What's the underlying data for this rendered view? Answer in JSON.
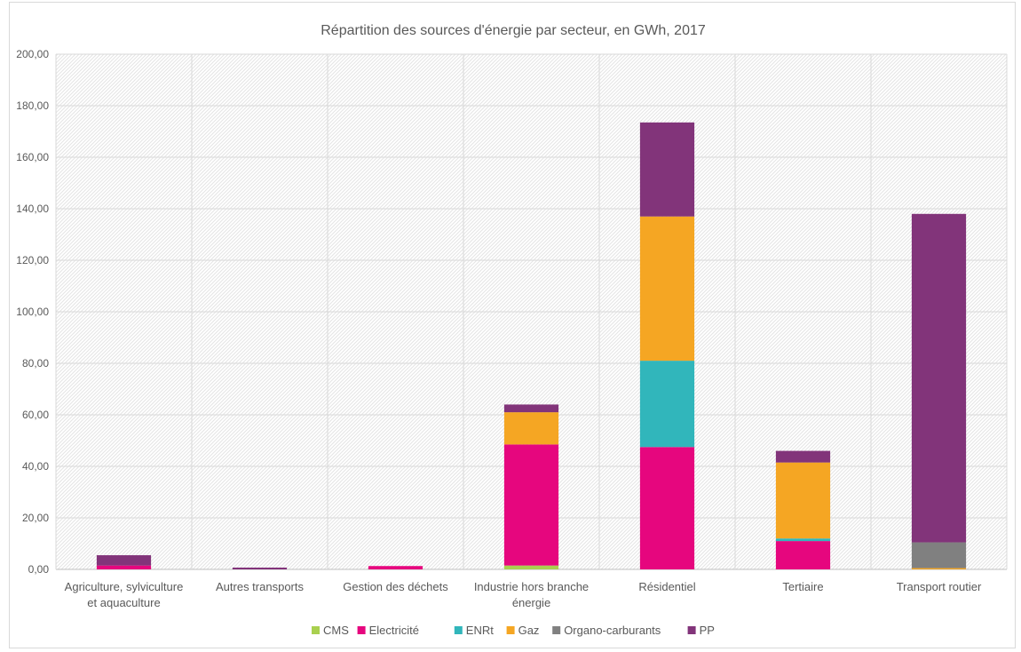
{
  "chart_data": {
    "type": "bar",
    "stacked": true,
    "title": "Répartition des sources d'énergie par secteur, en GWh, 2017",
    "xlabel": "",
    "ylabel": "",
    "ylim": [
      0,
      200
    ],
    "y_ticks": [
      "0,00",
      "20,00",
      "40,00",
      "60,00",
      "80,00",
      "100,00",
      "120,00",
      "140,00",
      "160,00",
      "180,00",
      "200,00"
    ],
    "categories": [
      [
        "Agriculture, sylviculture",
        "et aquaculture"
      ],
      [
        "Autres transports"
      ],
      [
        "Gestion des déchets"
      ],
      [
        "Industrie hors branche",
        "énergie"
      ],
      [
        "Résidentiel"
      ],
      [
        "Tertiaire"
      ],
      [
        "Transport routier"
      ]
    ],
    "series": [
      {
        "name": "CMS",
        "color": "#a9d04f",
        "values": [
          0,
          0,
          0,
          1.5,
          0,
          0,
          0
        ]
      },
      {
        "name": "Electricité",
        "color": "#e6067e",
        "values": [
          1.5,
          0,
          1.3,
          47,
          47.5,
          11,
          0
        ]
      },
      {
        "name": "ENRt",
        "color": "#31b6bb",
        "values": [
          0,
          0,
          0,
          0,
          33.5,
          1,
          0
        ]
      },
      {
        "name": "Gaz",
        "color": "#f5a623",
        "values": [
          0,
          0,
          0,
          12.5,
          56,
          29.5,
          0.5
        ]
      },
      {
        "name": "Organo-carburants",
        "color": "#808080",
        "values": [
          0,
          0,
          0,
          0,
          0,
          0,
          10
        ]
      },
      {
        "name": "PP",
        "color": "#82347a",
        "values": [
          4,
          0.7,
          0,
          3,
          36.5,
          4.5,
          127.5
        ]
      }
    ],
    "grid": true,
    "legend_position": "bottom"
  }
}
